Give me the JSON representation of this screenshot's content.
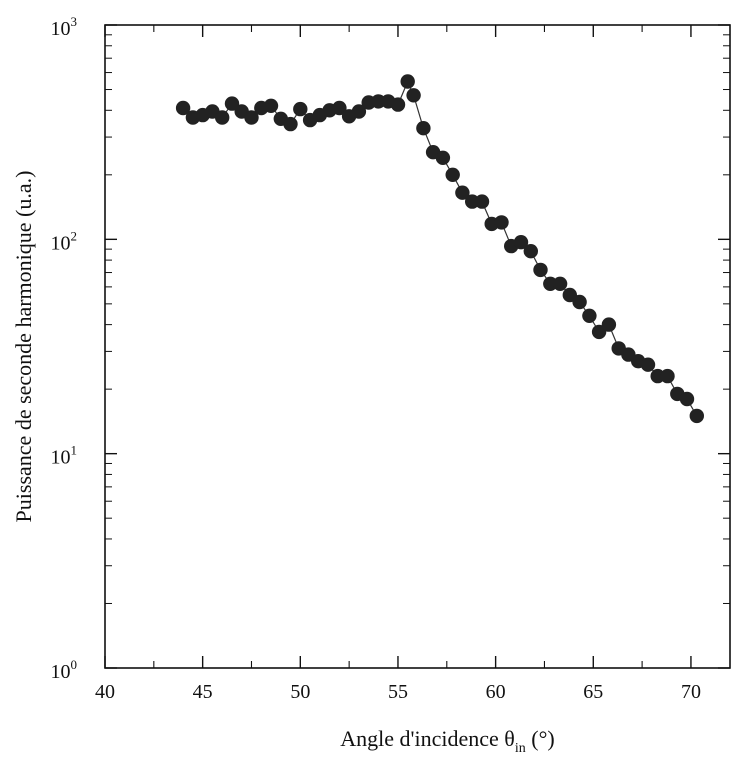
{
  "chart_data": {
    "type": "scatter",
    "xlabel": {
      "main": "Angle d'incidence θ",
      "sub": "in",
      "unit": " (°)"
    },
    "ylabel": "Puissance de seconde harmonique (u.a.)",
    "xlim": [
      40,
      72
    ],
    "ylim": [
      1,
      1000
    ],
    "yscale": "log",
    "x_ticks": [
      40,
      45,
      50,
      55,
      60,
      65,
      70
    ],
    "y_ticks": [
      {
        "base": "10",
        "exp": "0",
        "value": 1
      },
      {
        "base": "10",
        "exp": "1",
        "value": 10
      },
      {
        "base": "10",
        "exp": "2",
        "value": 100
      },
      {
        "base": "10",
        "exp": "3",
        "value": 1000
      }
    ],
    "grid": false,
    "series": [
      {
        "connected": true,
        "marker": "filled-circle",
        "color": "#222222",
        "points": [
          [
            44.0,
            410
          ],
          [
            44.5,
            370
          ],
          [
            45.0,
            380
          ],
          [
            45.5,
            395
          ],
          [
            46.0,
            370
          ],
          [
            46.5,
            430
          ],
          [
            47.0,
            395
          ],
          [
            47.5,
            370
          ],
          [
            48.0,
            410
          ],
          [
            48.5,
            420
          ],
          [
            49.0,
            365
          ],
          [
            49.5,
            345
          ],
          [
            50.0,
            405
          ],
          [
            50.5,
            360
          ],
          [
            51.0,
            380
          ],
          [
            51.5,
            400
          ],
          [
            52.0,
            410
          ],
          [
            52.5,
            375
          ],
          [
            53.0,
            395
          ],
          [
            53.5,
            435
          ],
          [
            54.0,
            440
          ],
          [
            54.5,
            440
          ],
          [
            55.0,
            425
          ],
          [
            55.5,
            545
          ],
          [
            55.8,
            470
          ],
          [
            56.3,
            330
          ],
          [
            56.8,
            255
          ],
          [
            57.3,
            240
          ],
          [
            57.8,
            200
          ],
          [
            58.3,
            165
          ],
          [
            58.8,
            150
          ],
          [
            59.3,
            150
          ],
          [
            59.8,
            118
          ],
          [
            60.3,
            120
          ],
          [
            60.8,
            93
          ],
          [
            61.3,
            97
          ],
          [
            61.8,
            88
          ],
          [
            62.3,
            72
          ],
          [
            62.8,
            62
          ],
          [
            63.3,
            62
          ],
          [
            63.8,
            55
          ],
          [
            64.3,
            51
          ],
          [
            64.8,
            44
          ],
          [
            65.3,
            37
          ],
          [
            65.8,
            40
          ],
          [
            66.3,
            31
          ],
          [
            66.8,
            29
          ],
          [
            67.3,
            27
          ],
          [
            67.8,
            26
          ],
          [
            68.3,
            23
          ],
          [
            68.8,
            23
          ],
          [
            69.3,
            19
          ],
          [
            69.8,
            18
          ],
          [
            70.3,
            15
          ]
        ]
      }
    ]
  }
}
